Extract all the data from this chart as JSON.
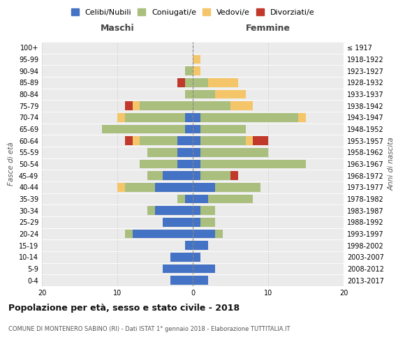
{
  "age_groups": [
    "100+",
    "95-99",
    "90-94",
    "85-89",
    "80-84",
    "75-79",
    "70-74",
    "65-69",
    "60-64",
    "55-59",
    "50-54",
    "45-49",
    "40-44",
    "35-39",
    "30-34",
    "25-29",
    "20-24",
    "15-19",
    "10-14",
    "5-9",
    "0-4"
  ],
  "birth_years": [
    "≤ 1917",
    "1918-1922",
    "1923-1927",
    "1928-1932",
    "1933-1937",
    "1938-1942",
    "1943-1947",
    "1948-1952",
    "1953-1957",
    "1958-1962",
    "1963-1967",
    "1968-1972",
    "1973-1977",
    "1978-1982",
    "1983-1987",
    "1988-1992",
    "1993-1997",
    "1998-2002",
    "2003-2007",
    "2008-2012",
    "2013-2017"
  ],
  "maschi": {
    "celibi": [
      0,
      0,
      0,
      0,
      0,
      0,
      1,
      1,
      2,
      2,
      2,
      4,
      5,
      1,
      5,
      4,
      8,
      1,
      3,
      4,
      3
    ],
    "coniugati": [
      0,
      0,
      1,
      1,
      1,
      7,
      8,
      11,
      5,
      4,
      5,
      2,
      4,
      1,
      1,
      0,
      1,
      0,
      0,
      0,
      0
    ],
    "vedovi": [
      0,
      0,
      0,
      0,
      0,
      1,
      1,
      0,
      1,
      0,
      0,
      0,
      1,
      0,
      0,
      0,
      0,
      0,
      0,
      0,
      0
    ],
    "divorziati": [
      0,
      0,
      0,
      1,
      0,
      1,
      0,
      0,
      1,
      0,
      0,
      0,
      0,
      0,
      0,
      0,
      0,
      0,
      0,
      0,
      0
    ]
  },
  "femmine": {
    "nubili": [
      0,
      0,
      0,
      0,
      0,
      0,
      1,
      1,
      1,
      1,
      1,
      1,
      3,
      2,
      1,
      1,
      3,
      2,
      1,
      3,
      2
    ],
    "coniugate": [
      0,
      0,
      0,
      2,
      3,
      5,
      13,
      6,
      6,
      9,
      14,
      4,
      6,
      6,
      2,
      2,
      1,
      0,
      0,
      0,
      0
    ],
    "vedove": [
      0,
      1,
      1,
      4,
      4,
      3,
      1,
      0,
      1,
      0,
      0,
      0,
      0,
      0,
      0,
      0,
      0,
      0,
      0,
      0,
      0
    ],
    "divorziate": [
      0,
      0,
      0,
      0,
      0,
      0,
      0,
      0,
      2,
      0,
      0,
      1,
      0,
      0,
      0,
      0,
      0,
      0,
      0,
      0,
      0
    ]
  },
  "colors": {
    "celibi_nubili": "#4472C4",
    "coniugati": "#AABF7E",
    "vedovi": "#F5C56A",
    "divorziati": "#C0392B"
  },
  "xlim": 20,
  "title": "Popolazione per età, sesso e stato civile - 2018",
  "subtitle": "COMUNE DI MONTENERO SABINO (RI) - Dati ISTAT 1° gennaio 2018 - Elaborazione TUTTITALIA.IT",
  "ylabel": "Fasce di età",
  "ylabel_right": "Anni di nascita",
  "legend_labels": [
    "Celibi/Nubili",
    "Coniugati/e",
    "Vedovi/e",
    "Divorziati/e"
  ],
  "maschi_label": "Maschi",
  "femmine_label": "Femmine",
  "background_color": "#ebebeb"
}
